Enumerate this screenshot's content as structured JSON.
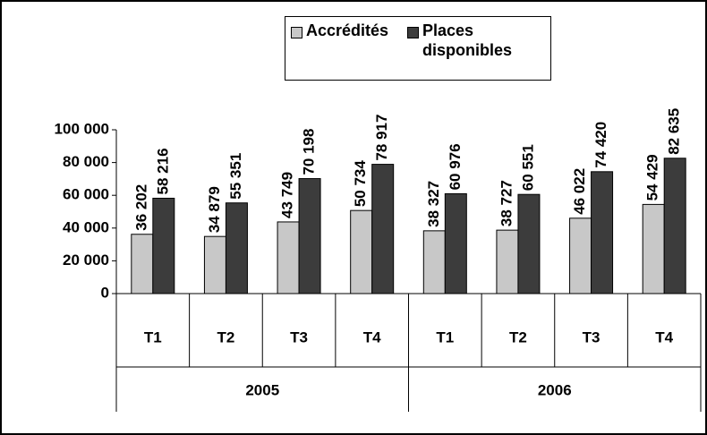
{
  "chart_data": {
    "type": "bar",
    "categories": [
      "T1",
      "T2",
      "T3",
      "T4",
      "T1",
      "T2",
      "T3",
      "T4"
    ],
    "groups": [
      "2005",
      "2006"
    ],
    "series": [
      {
        "name": "Accrédités",
        "color": "#c8c8c8",
        "values": [
          36202,
          34879,
          43749,
          50734,
          38327,
          38727,
          46022,
          54429
        ],
        "value_labels": [
          "36 202",
          "34 879",
          "43 749",
          "50 734",
          "38 327",
          "38 727",
          "46 022",
          "54 429"
        ]
      },
      {
        "name": "Places disponibles",
        "color": "#3c3c3c",
        "values": [
          58216,
          55351,
          70198,
          78917,
          60976,
          60551,
          74420,
          82635
        ],
        "value_labels": [
          "58 216",
          "55 351",
          "70 198",
          "78 917",
          "60 976",
          "60 551",
          "74 420",
          "82 635"
        ]
      }
    ],
    "ylim": [
      0,
      100000
    ],
    "yticks": [
      0,
      {
        "value": 20000,
        "label": "20 000"
      },
      {
        "value": 40000,
        "label": "40 000"
      },
      {
        "value": 60000,
        "label": "60 000"
      },
      {
        "value": 80000,
        "label": "80 000"
      },
      {
        "value": 100000,
        "label": "100 000"
      }
    ],
    "grid": false
  }
}
